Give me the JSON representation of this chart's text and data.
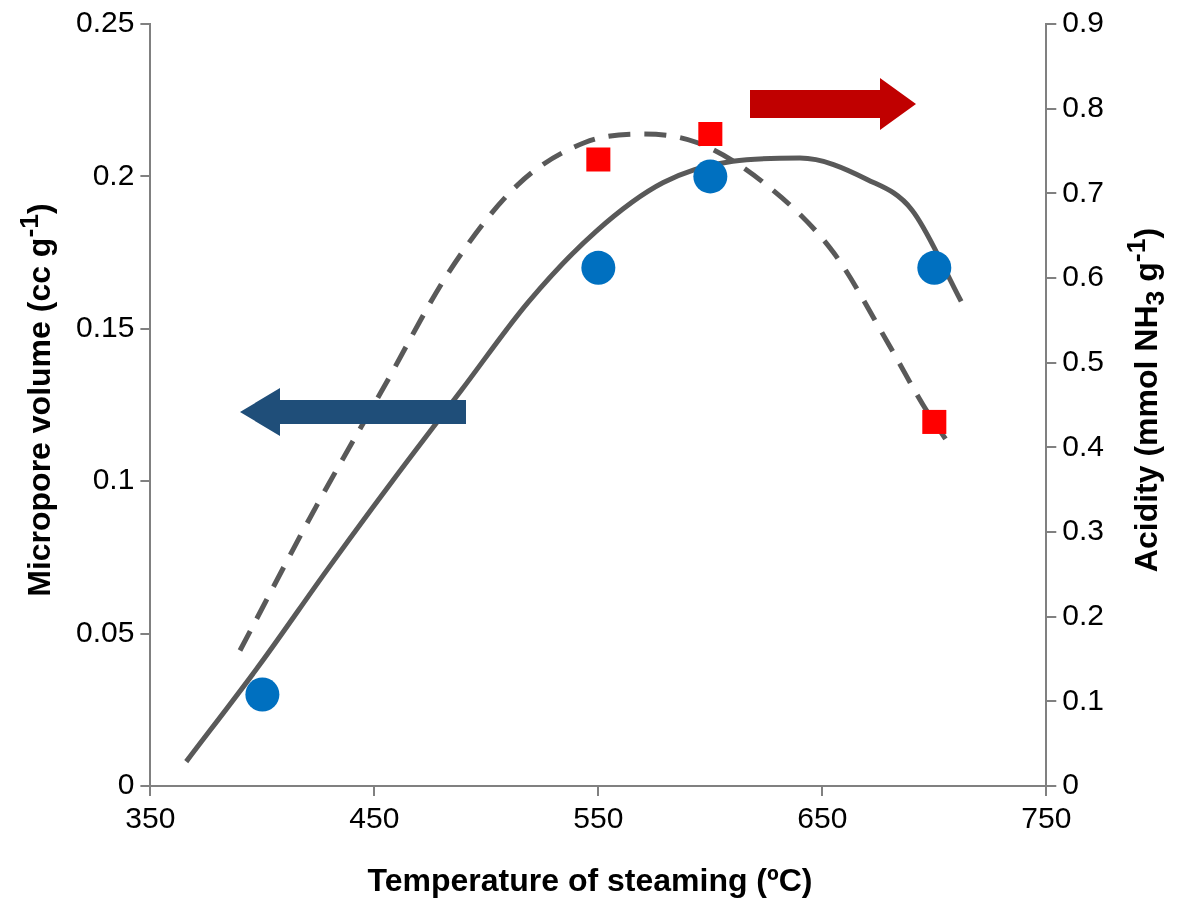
{
  "chart_data": {
    "type": "scatter",
    "xlabel": "Temperature of steaming (ºC)",
    "ylabel": "Micropore volume (cc g$^{-1}$)",
    "y2label": "Acidity (mmol NH$_{3}$ g$^{-1}$)",
    "xlim": [
      350,
      750
    ],
    "xticks": [
      350,
      450,
      550,
      650,
      750
    ],
    "ylim": [
      0,
      0.25
    ],
    "yticks": [
      0,
      0.05,
      0.1,
      0.15,
      0.2,
      0.25
    ],
    "y2lim": [
      0,
      0.9
    ],
    "y2ticks": [
      0,
      0.1,
      0.2,
      0.3,
      0.4,
      0.5,
      0.6,
      0.7,
      0.8,
      0.9
    ],
    "grid": false,
    "legend": false,
    "series": [
      {
        "type": "line",
        "color": "#595959",
        "marker": "none",
        "line_style": "solid",
        "x": [
          366,
          399,
          429,
          459,
          489,
          519,
          549,
          579,
          610,
          640,
          670,
          690,
          712
        ],
        "values": [
          0.008,
          0.04,
          0.071,
          0.101,
          0.13,
          0.159,
          0.182,
          0.198,
          0.205,
          0.206,
          0.199,
          0.189,
          0.159
        ]
      },
      {
        "type": "line",
        "color": "#595959",
        "marker": "none",
        "line_style": "dashed",
        "axis": "y2",
        "x": [
          390,
          424,
          454,
          484,
          514,
          544,
          569,
          594,
          625,
          655,
          680,
          695,
          705
        ],
        "values": [
          0.16,
          0.33,
          0.47,
          0.61,
          0.71,
          0.76,
          0.77,
          0.76,
          0.71,
          0.63,
          0.52,
          0.45,
          0.41
        ]
      },
      {
        "type": "scatter",
        "color": "#0070c0",
        "marker": "circle",
        "x": [
          400,
          550,
          600,
          700
        ],
        "values": [
          0.03,
          0.17,
          0.2,
          0.17
        ]
      },
      {
        "type": "scatter",
        "color": "#ff0000",
        "marker": "square",
        "axis": "y2",
        "x": [
          550,
          600,
          700
        ],
        "values": [
          0.74,
          0.77,
          0.43
        ]
      }
    ]
  }
}
